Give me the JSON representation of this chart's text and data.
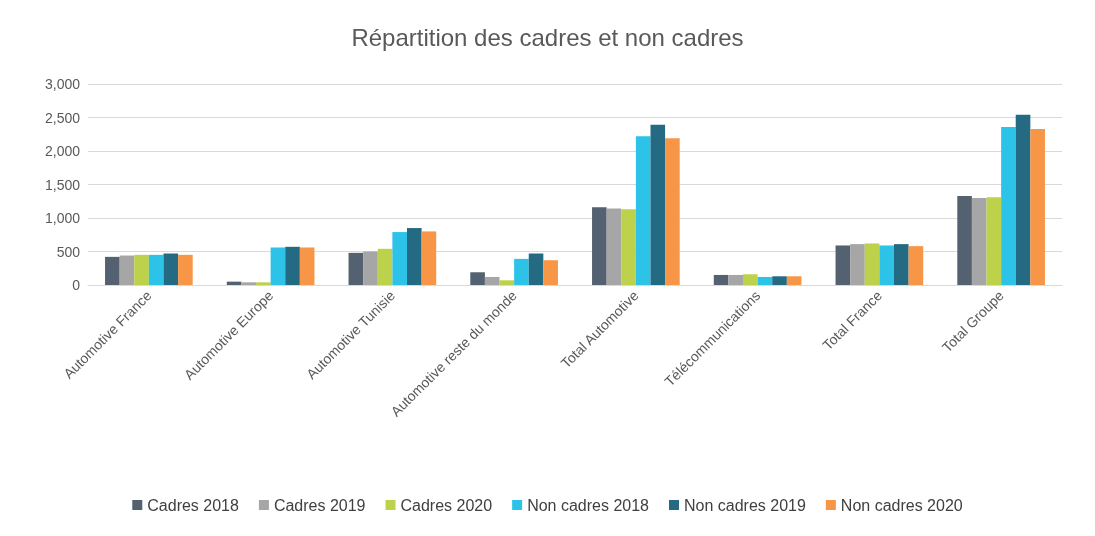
{
  "chart_data": {
    "type": "bar",
    "title": "Répartition des cadres et non cadres",
    "categories": [
      "Automotive France",
      "Automotive Europe",
      "Automotive Tunisie",
      "Automotive reste du monde",
      "Total Automotive",
      "Télécommunications",
      "Total France",
      "Total Groupe"
    ],
    "series": [
      {
        "name": "Cadres 2018",
        "color": "#536170",
        "values": [
          420,
          50,
          480,
          190,
          1160,
          150,
          590,
          1330
        ]
      },
      {
        "name": "Cadres 2019",
        "color": "#a6a6a6",
        "values": [
          440,
          40,
          500,
          120,
          1140,
          150,
          610,
          1300
        ]
      },
      {
        "name": "Cadres 2020",
        "color": "#bed14a",
        "values": [
          450,
          40,
          540,
          70,
          1130,
          160,
          620,
          1310
        ]
      },
      {
        "name": "Non cadres 2018",
        "color": "#2dc3e8",
        "values": [
          450,
          560,
          790,
          390,
          2220,
          120,
          590,
          2360
        ]
      },
      {
        "name": "Non cadres 2019",
        "color": "#236a82",
        "values": [
          470,
          570,
          850,
          470,
          2390,
          130,
          610,
          2540
        ]
      },
      {
        "name": "Non cadres 2020",
        "color": "#f79646",
        "values": [
          450,
          560,
          800,
          370,
          2190,
          130,
          580,
          2330
        ]
      }
    ],
    "ylim": [
      0,
      3000
    ],
    "yticks": [
      0,
      500,
      {
        "value": 1000,
        "label": "1,000"
      },
      {
        "value": 1500,
        "label": "1,500"
      },
      {
        "value": 2000,
        "label": "2,000"
      },
      {
        "value": 2500,
        "label": "2,500"
      },
      {
        "value": 3000,
        "label": "3,000"
      }
    ],
    "grid": "y",
    "legend": "bottom"
  }
}
